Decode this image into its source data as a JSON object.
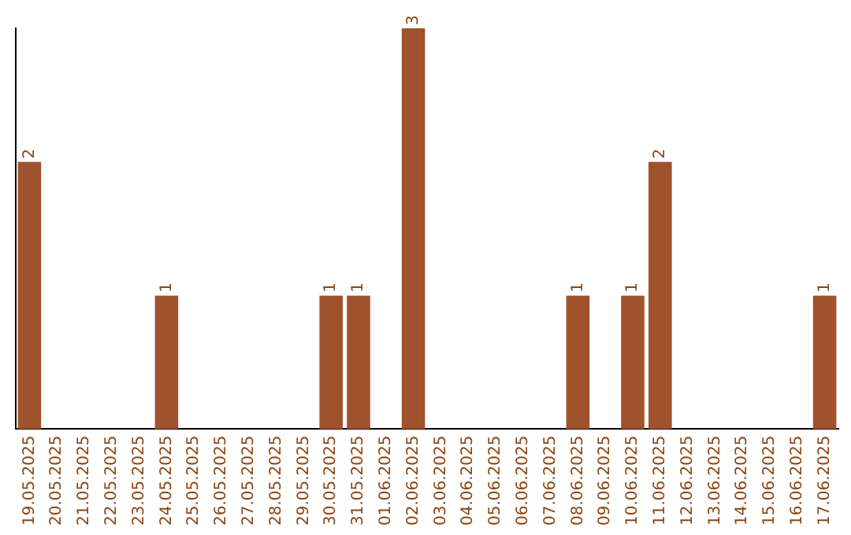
{
  "chart_data": {
    "type": "bar",
    "categories": [
      "19.05.2025",
      "20.05.2025",
      "21.05.2025",
      "22.05.2025",
      "23.05.2025",
      "24.05.2025",
      "25.05.2025",
      "26.05.2025",
      "27.05.2025",
      "28.05.2025",
      "29.05.2025",
      "30.05.2025",
      "31.05.2025",
      "01.06.2025",
      "02.06.2025",
      "03.06.2025",
      "04.06.2025",
      "05.06.2025",
      "06.06.2025",
      "07.06.2025",
      "08.06.2025",
      "09.06.2025",
      "10.06.2025",
      "11.06.2025",
      "12.06.2025",
      "13.06.2025",
      "14.06.2025",
      "15.06.2025",
      "16.06.2025",
      "17.06.2025"
    ],
    "values": [
      2,
      0,
      0,
      0,
      0,
      1,
      0,
      0,
      0,
      0,
      0,
      1,
      1,
      0,
      3,
      0,
      0,
      0,
      0,
      0,
      1,
      0,
      1,
      2,
      0,
      0,
      0,
      0,
      0,
      1
    ],
    "value_labels": [
      "2",
      null,
      null,
      null,
      null,
      "1",
      null,
      null,
      null,
      null,
      null,
      "1",
      "1",
      null,
      "3",
      null,
      null,
      null,
      null,
      null,
      "1",
      null,
      "1",
      "2",
      null,
      null,
      null,
      null,
      null,
      "1"
    ],
    "color": "#a0522d",
    "tick_labels": "x"
  }
}
